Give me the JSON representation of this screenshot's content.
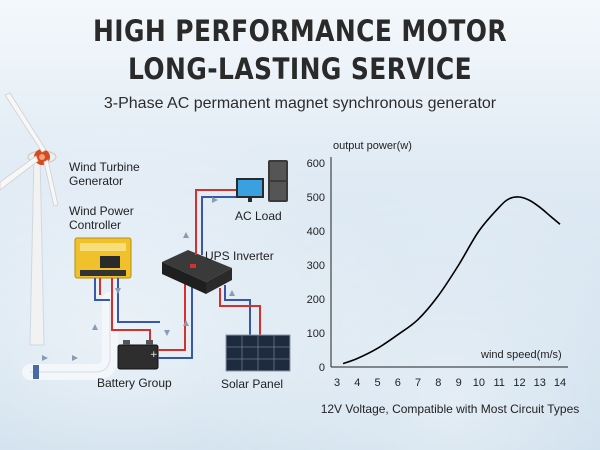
{
  "header": {
    "title_line1": "HIGH PERFORMANCE MOTOR",
    "title_line2": "LONG-LASTING SERVICE",
    "subtitle": "3-Phase AC permanent magnet synchronous generator"
  },
  "diagram": {
    "wind_turbine_label": "Wind Turbine Generator",
    "controller_label": "Wind Power Controller",
    "ac_load_label": "AC Load",
    "inverter_label": "UPS Inverter",
    "battery_label": "Battery Group",
    "solar_label": "Solar Panel"
  },
  "chart_data": {
    "type": "line",
    "ylabel": "output power(w)",
    "xlabel": "wind speed(m/s)",
    "x_ticks": [
      3,
      4,
      5,
      6,
      7,
      8,
      9,
      10,
      11,
      12,
      13,
      14
    ],
    "y_ticks": [
      0,
      100,
      200,
      300,
      400,
      500,
      600
    ],
    "xlim": [
      3,
      14
    ],
    "ylim": [
      0,
      600
    ],
    "grid": false,
    "series": [
      {
        "x": [
          3.3,
          4,
          5,
          6,
          7,
          8,
          9,
          10,
          11,
          11.5,
          12,
          12.5,
          13,
          13.5,
          14
        ],
        "y": [
          10,
          25,
          55,
          95,
          140,
          210,
          300,
          400,
          470,
          495,
          500,
          490,
          470,
          445,
          420
        ],
        "color": "#000000"
      }
    ],
    "caption": "12V Voltage, Compatible with Most Circuit Types"
  }
}
